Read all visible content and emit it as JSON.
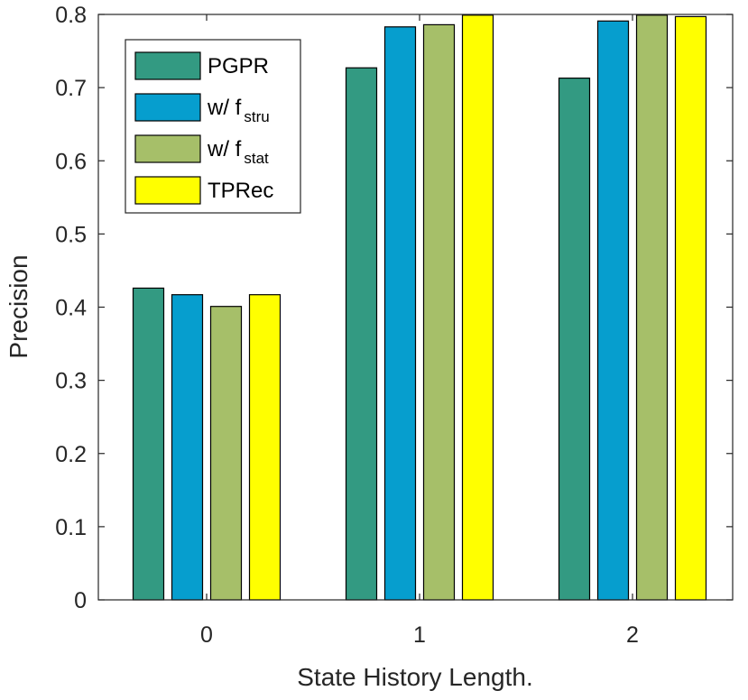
{
  "chart_data": {
    "type": "bar",
    "categories": [
      "0",
      "1",
      "2"
    ],
    "series": [
      {
        "name": "PGPR",
        "label_main": "PGPR",
        "label_sub": "",
        "color": "#339a82",
        "values": [
          0.426,
          0.727,
          0.713
        ]
      },
      {
        "name": "w/ f_stru",
        "label_main": "w/ f",
        "label_sub": "stru",
        "color": "#069ece",
        "values": [
          0.417,
          0.783,
          0.791
        ]
      },
      {
        "name": "w/ f_stat",
        "label_main": "w/ f",
        "label_sub": "stat",
        "color": "#a6bf69",
        "values": [
          0.401,
          0.786,
          0.799
        ]
      },
      {
        "name": "TPRec",
        "label_main": "TPRec",
        "label_sub": "",
        "color": "#ffff00",
        "values": [
          0.417,
          0.799,
          0.797
        ]
      }
    ],
    "xlabel": "State History Length.",
    "ylabel": "Precision",
    "ylim": [
      0,
      0.8
    ],
    "yticks": [
      "0",
      "0.1",
      "0.2",
      "0.3",
      "0.4",
      "0.5",
      "0.6",
      "0.7",
      "0.8"
    ],
    "grid": false,
    "legend_position": "top-left"
  }
}
